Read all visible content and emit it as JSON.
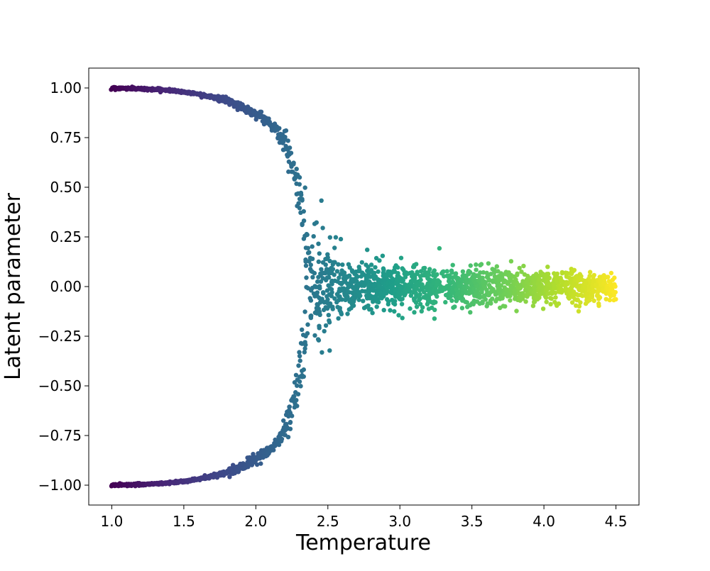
{
  "chart_data": {
    "type": "scatter",
    "title": "",
    "xlabel": "Temperature",
    "ylabel": "Latent parameter",
    "xlim": [
      0.84,
      4.66
    ],
    "ylim": [
      -1.1,
      1.1
    ],
    "xticks": [
      1.0,
      1.5,
      2.0,
      2.5,
      3.0,
      3.5,
      4.0,
      4.5
    ],
    "xtick_labels": [
      "1.0",
      "1.5",
      "2.0",
      "2.5",
      "3.0",
      "3.5",
      "4.0",
      "4.5"
    ],
    "yticks": [
      1.0,
      0.75,
      0.5,
      0.25,
      0.0,
      -0.25,
      -0.5,
      -0.75,
      -1.0
    ],
    "ytick_labels": [
      "1.00",
      "0.75",
      "0.50",
      "0.25",
      "0.00",
      "−0.25",
      "−0.50",
      "−0.75",
      "−1.00"
    ],
    "grid": false,
    "colormap": "viridis",
    "color_by": "x",
    "color_range": [
      1.0,
      4.5
    ],
    "colormap_stops": [
      "#440154",
      "#482878",
      "#3e4989",
      "#31688e",
      "#26828e",
      "#1f9e89",
      "#35b779",
      "#6ece58",
      "#b5de2b",
      "#fde725"
    ],
    "marker_color_edge": "#000000",
    "series": [
      {
        "description": "upper branch (ordered phase, positive)",
        "x": [
          1.0,
          1.1,
          1.2,
          1.3,
          1.4,
          1.5,
          1.6,
          1.7,
          1.8,
          1.9,
          2.0,
          2.05,
          2.1,
          2.15,
          2.2,
          2.25,
          2.3,
          2.35
        ],
        "y": [
          1.0,
          0.998,
          0.996,
          0.993,
          0.988,
          0.98,
          0.97,
          0.955,
          0.935,
          0.905,
          0.87,
          0.85,
          0.82,
          0.78,
          0.72,
          0.62,
          0.45,
          0.25
        ]
      },
      {
        "description": "lower branch (ordered phase, negative)",
        "x": [
          1.0,
          1.1,
          1.2,
          1.3,
          1.4,
          1.5,
          1.6,
          1.7,
          1.8,
          1.9,
          2.0,
          2.05,
          2.1,
          2.15,
          2.2,
          2.25,
          2.3,
          2.35
        ],
        "y": [
          -1.0,
          -0.998,
          -0.996,
          -0.993,
          -0.988,
          -0.98,
          -0.97,
          -0.955,
          -0.935,
          -0.905,
          -0.87,
          -0.85,
          -0.82,
          -0.78,
          -0.72,
          -0.62,
          -0.45,
          -0.25
        ]
      },
      {
        "description": "disordered phase (centered near zero)",
        "x": [
          2.35,
          2.5,
          2.75,
          3.0,
          3.25,
          3.5,
          3.75,
          4.0,
          4.25,
          4.5
        ],
        "y": [
          0.0,
          0.0,
          0.0,
          0.0,
          0.0,
          0.0,
          0.0,
          0.0,
          0.0,
          0.0
        ]
      }
    ]
  }
}
